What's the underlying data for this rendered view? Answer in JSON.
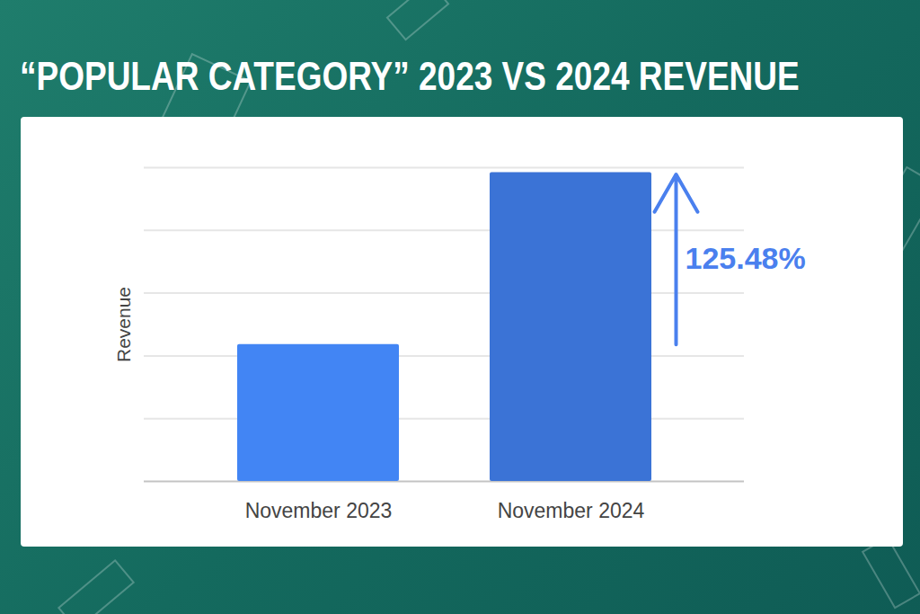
{
  "chart_data": {
    "type": "bar",
    "title": "“POPULAR CATEGORY” 2023 VS 2024 REVENUE",
    "y_label": "Revenue",
    "categories": [
      "November 2023",
      "November 2024"
    ],
    "values": [
      2.18,
      4.92
    ],
    "colors": [
      "#4285f4",
      "#3b73d6"
    ],
    "annotation": "125.48%",
    "ylim": [
      0,
      5
    ],
    "yticks": [
      0,
      1,
      2,
      3,
      4,
      5
    ],
    "grid": true,
    "tick_labels": "x"
  }
}
